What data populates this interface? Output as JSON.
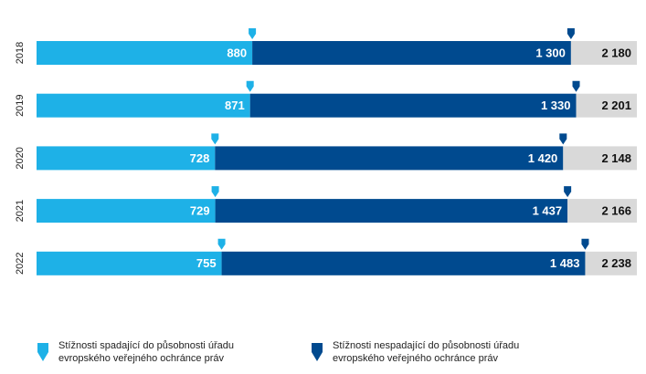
{
  "chart_data": {
    "type": "stacked-bar-horizontal",
    "categories": [
      "2018",
      "2019",
      "2020",
      "2021",
      "2022"
    ],
    "series": [
      {
        "name": "Stížnosti spadající do působnosti úřadu evropského veřejného ochránce práv",
        "color": "#1eb1e7",
        "values": [
          880,
          871,
          728,
          729,
          755
        ],
        "value_labels": [
          "880",
          "871",
          "728",
          "729",
          "755"
        ]
      },
      {
        "name": "Stížnosti nespadající do působnosti úřadu evropského veřejného ochránce práv",
        "color": "#004a8f",
        "values": [
          1300,
          1330,
          1420,
          1437,
          1483
        ],
        "value_labels": [
          "1 300",
          "1 330",
          "1 420",
          "1 437",
          "1 483"
        ]
      }
    ],
    "totals": [
      2180,
      2201,
      2148,
      2166,
      2238
    ],
    "total_labels": [
      "2 180",
      "2 201",
      "2 148",
      "2 166",
      "2 238"
    ],
    "total_color": "#d9d9d9"
  }
}
